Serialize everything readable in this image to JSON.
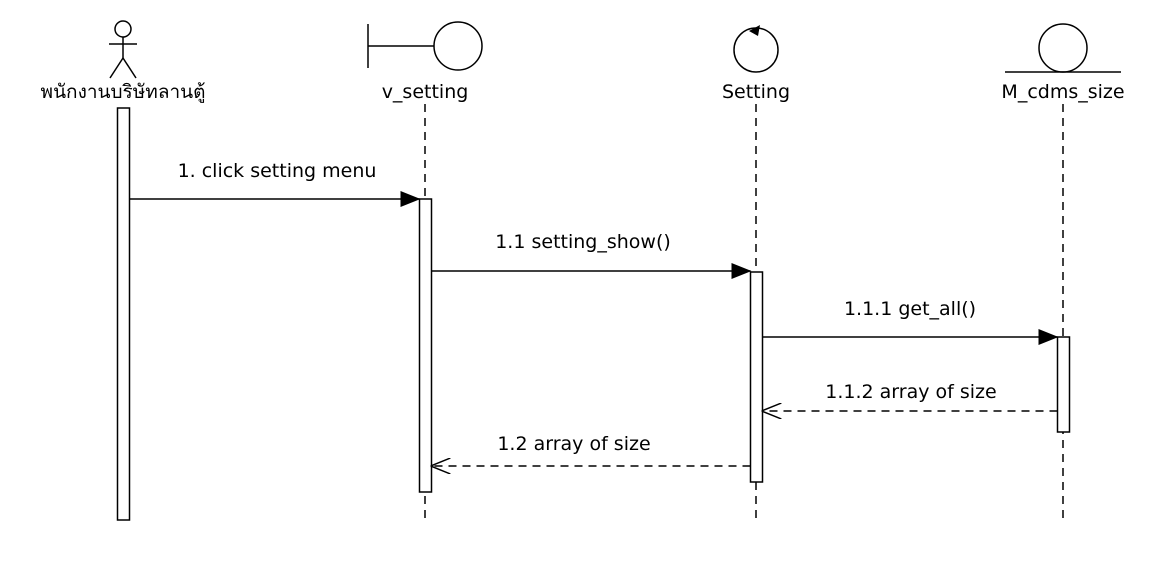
{
  "participants": [
    {
      "id": "actor",
      "kind": "actor",
      "icon": "actor-icon",
      "label": "พนักงานบริษัทลานตู้"
    },
    {
      "id": "v_setting",
      "kind": "boundary",
      "icon": "boundary-icon",
      "label": "v_setting"
    },
    {
      "id": "setting",
      "kind": "control",
      "icon": "control-icon",
      "label": "Setting"
    },
    {
      "id": "m_cdms_size",
      "kind": "entity",
      "icon": "entity-icon",
      "label": "M_cdms_size"
    }
  ],
  "messages": [
    {
      "id": "m1",
      "label": "1. click setting menu",
      "from": "actor",
      "to": "v_setting",
      "style": "synchronous"
    },
    {
      "id": "m11",
      "label": "1.1 setting_show()",
      "from": "v_setting",
      "to": "setting",
      "style": "synchronous"
    },
    {
      "id": "m111",
      "label": "1.1.1 get_all()",
      "from": "setting",
      "to": "m_cdms_size",
      "style": "synchronous"
    },
    {
      "id": "m112",
      "label": "1.1.2 array of size",
      "from": "m_cdms_size",
      "to": "setting",
      "style": "return"
    },
    {
      "id": "m12",
      "label": "1.2 array of size",
      "from": "setting",
      "to": "v_setting",
      "style": "return"
    }
  ]
}
